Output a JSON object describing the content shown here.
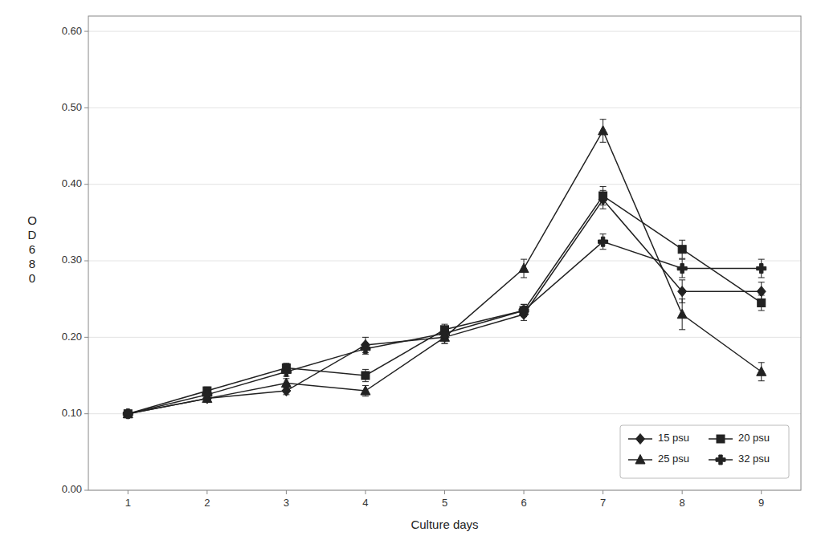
{
  "chart_data": {
    "type": "line",
    "xlabel": "Culture days",
    "ylabel": "OD680",
    "x": [
      1,
      2,
      3,
      4,
      5,
      6,
      7,
      8,
      9
    ],
    "xlim": [
      0.5,
      9.5
    ],
    "xticks": [
      1,
      2,
      3,
      4,
      5,
      6,
      7,
      8,
      9
    ],
    "ylim": [
      0.0,
      0.62
    ],
    "yticks": [
      {
        "value": 0.0,
        "label": "0.00"
      },
      {
        "value": 0.1,
        "label": "0.10"
      },
      {
        "value": 0.2,
        "label": "0.20"
      },
      {
        "value": 0.3,
        "label": "0.30"
      },
      {
        "value": 0.4,
        "label": "0.40"
      },
      {
        "value": 0.5,
        "label": "0.50"
      },
      {
        "value": 0.6,
        "label": "0.60"
      }
    ],
    "grid": true,
    "legend": "lower right",
    "series": [
      {
        "name": "15 psu",
        "color": "#222222",
        "marker": "diamond",
        "line_style": "solid",
        "values": [
          0.1,
          0.12,
          0.13,
          0.19,
          0.2,
          0.23,
          0.38,
          0.26,
          0.26
        ],
        "yerr": [
          0.004,
          0.005,
          0.005,
          0.01,
          0.008,
          0.008,
          0.012,
          0.015,
          0.012
        ]
      },
      {
        "name": "20 psu",
        "color": "#222222",
        "marker": "square",
        "line_style": "solid",
        "values": [
          0.1,
          0.13,
          0.16,
          0.15,
          0.21,
          0.235,
          0.385,
          0.315,
          0.245
        ],
        "yerr": [
          0.004,
          0.005,
          0.006,
          0.008,
          0.007,
          0.008,
          0.012,
          0.012,
          0.01
        ]
      },
      {
        "name": "25 psu",
        "color": "#222222",
        "marker": "triangle",
        "line_style": "solid",
        "values": [
          0.1,
          0.12,
          0.14,
          0.13,
          0.2,
          0.29,
          0.47,
          0.23,
          0.155
        ],
        "yerr": [
          0.004,
          0.005,
          0.006,
          0.007,
          0.008,
          0.012,
          0.015,
          0.02,
          0.012
        ]
      },
      {
        "name": "32 psu",
        "color": "#222222",
        "marker": "plus",
        "line_style": "solid",
        "values": [
          0.1,
          0.125,
          0.155,
          0.185,
          0.205,
          0.235,
          0.325,
          0.29,
          0.29
        ],
        "yerr": [
          0.004,
          0.005,
          0.006,
          0.007,
          0.007,
          0.008,
          0.01,
          0.012,
          0.012
        ]
      }
    ]
  }
}
